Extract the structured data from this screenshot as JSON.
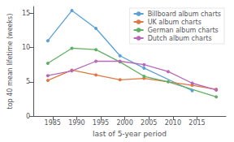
{
  "chart_data": {
    "type": "line",
    "xlabel": "last of 5-year period",
    "ylabel": "top 40 mean lifetime (weeks)",
    "xlim": [
      1981,
      2021
    ],
    "ylim": [
      0,
      16
    ],
    "xticks": [
      1985,
      1990,
      1995,
      2000,
      2005,
      2010,
      2015
    ],
    "yticks": [
      0,
      5,
      10,
      15
    ],
    "grid": false,
    "legend": "upper right",
    "marker": "circle",
    "series": [
      {
        "name": "Billboard album charts",
        "color": "#5aa0d8",
        "x": [
          1984,
          1989,
          1994,
          1999,
          2004,
          2014
        ],
        "values": [
          11.0,
          15.4,
          12.8,
          8.8,
          7.0,
          3.7
        ]
      },
      {
        "name": "UK album charts",
        "color": "#e07840",
        "x": [
          1984,
          1989,
          1994,
          1999,
          2004,
          2014,
          2019
        ],
        "values": [
          5.2,
          6.7,
          6.0,
          5.3,
          5.5,
          4.5,
          3.9
        ]
      },
      {
        "name": "German album charts",
        "color": "#60b060",
        "x": [
          1984,
          1989,
          1994,
          1999,
          2004,
          2009,
          2019
        ],
        "values": [
          7.7,
          9.9,
          9.7,
          7.9,
          5.8,
          5.0,
          2.8
        ]
      },
      {
        "name": "Dutch album charts",
        "color": "#b868b8",
        "x": [
          1984,
          1989,
          1994,
          1999,
          2004,
          2009,
          2014,
          2019
        ],
        "values": [
          5.9,
          6.6,
          8.0,
          8.0,
          7.5,
          6.5,
          4.8,
          3.8
        ]
      }
    ]
  }
}
